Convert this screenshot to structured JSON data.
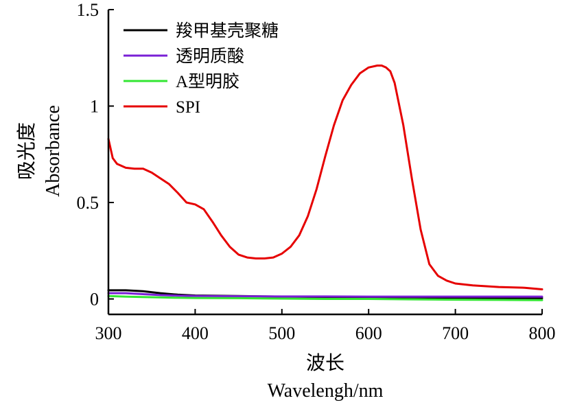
{
  "chart_data": {
    "type": "line",
    "xlabel_cn": "波长",
    "xlabel": "Wavelengh/nm",
    "ylabel_cn": "吸光度",
    "ylabel": "Absorbance",
    "xlim": [
      300,
      800
    ],
    "ylim": [
      -0.08,
      1.5
    ],
    "xticks": [
      300,
      400,
      500,
      600,
      700,
      800
    ],
    "yticks": [
      0,
      0.5,
      1,
      1.5
    ],
    "xtick_labels": [
      "300",
      "400",
      "500",
      "600",
      "700",
      "800"
    ],
    "ytick_labels": [
      "0",
      "0.5",
      "1",
      "1.5"
    ],
    "grid": false,
    "legend_position": "top-left",
    "series": [
      {
        "name": "羧甲基壳聚糖",
        "color": "#000000",
        "x": [
          300,
          320,
          340,
          360,
          380,
          400,
          450,
          500,
          550,
          600,
          650,
          700,
          750,
          800
        ],
        "y": [
          0.045,
          0.045,
          0.04,
          0.03,
          0.022,
          0.018,
          0.015,
          0.012,
          0.01,
          0.01,
          0.008,
          0.006,
          0.005,
          0.004
        ]
      },
      {
        "name": "透明质酸",
        "color": "#7A1FD6",
        "x": [
          300,
          320,
          340,
          360,
          380,
          400,
          450,
          500,
          550,
          600,
          650,
          700,
          750,
          800
        ],
        "y": [
          0.03,
          0.03,
          0.025,
          0.02,
          0.017,
          0.015,
          0.014,
          0.013,
          0.013,
          0.012,
          0.012,
          0.012,
          0.012,
          0.012
        ]
      },
      {
        "name": "A型明胶",
        "color": "#33E633",
        "x": [
          300,
          320,
          340,
          360,
          380,
          400,
          450,
          500,
          550,
          600,
          650,
          700,
          750,
          800
        ],
        "y": [
          0.015,
          0.012,
          0.01,
          0.008,
          0.006,
          0.005,
          0.004,
          0.002,
          0.0,
          0.0,
          -0.002,
          -0.004,
          -0.005,
          -0.006
        ]
      },
      {
        "name": "SPI",
        "color": "#E60000",
        "x": [
          300,
          305,
          310,
          320,
          330,
          340,
          350,
          360,
          370,
          380,
          390,
          400,
          410,
          420,
          430,
          440,
          450,
          460,
          470,
          480,
          490,
          500,
          510,
          520,
          530,
          540,
          550,
          560,
          570,
          580,
          590,
          600,
          610,
          615,
          620,
          625,
          630,
          640,
          650,
          660,
          670,
          680,
          690,
          700,
          720,
          750,
          780,
          800
        ],
        "y": [
          0.83,
          0.73,
          0.7,
          0.68,
          0.675,
          0.675,
          0.655,
          0.625,
          0.595,
          0.55,
          0.5,
          0.49,
          0.465,
          0.4,
          0.33,
          0.27,
          0.23,
          0.215,
          0.21,
          0.21,
          0.215,
          0.235,
          0.27,
          0.33,
          0.43,
          0.57,
          0.74,
          0.9,
          1.03,
          1.11,
          1.17,
          1.2,
          1.21,
          1.21,
          1.2,
          1.18,
          1.12,
          0.9,
          0.62,
          0.36,
          0.18,
          0.12,
          0.095,
          0.08,
          0.07,
          0.062,
          0.058,
          0.05
        ]
      }
    ]
  }
}
